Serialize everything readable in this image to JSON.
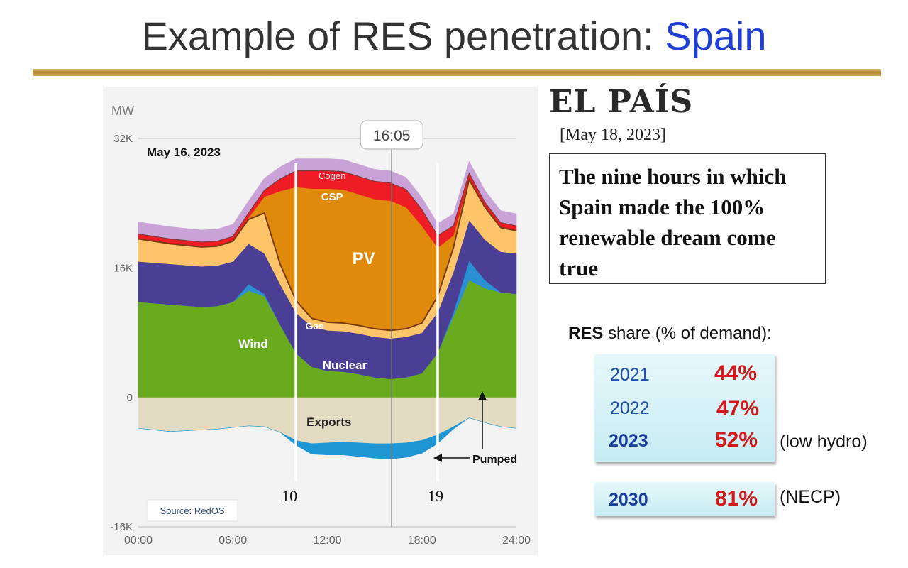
{
  "slide": {
    "title_prefix": "Example of RES penetration: ",
    "title_accent": "Spain"
  },
  "article": {
    "masthead": "EL PAÍS",
    "date": "[May 18, 2023]",
    "headline": "The nine hours in which Spain made the 100% renewable dream come true"
  },
  "res_share": {
    "heading_bold": "RES",
    "heading_rest": " share (% of demand):",
    "rows": [
      {
        "year": "2021",
        "value": "44%",
        "note": ""
      },
      {
        "year": "2022",
        "value": "47%",
        "note": ""
      },
      {
        "year": "2023",
        "value": "52%",
        "note": "(low hydro)"
      },
      {
        "year": "2030",
        "value": "81%",
        "note": "(NECP)"
      }
    ]
  },
  "colors": {
    "wind": "#6aaa1e",
    "hydro": "#2b8fd3",
    "nuclear": "#4a3f94",
    "gas": "#fdc46a",
    "pv": "#e08a0c",
    "csp": "#ee1c25",
    "cogen": "#c9a3d8",
    "exports": "#e4dcc2",
    "pumped": "#1f97d4"
  },
  "chart_data": {
    "type": "area",
    "date_label": "May 16, 2023",
    "unit_label": "MW",
    "cursor_time": "16:05",
    "y_ticks": [
      "32K",
      "16K",
      "0",
      "-16K"
    ],
    "x_ticks": [
      "00:00",
      "06:00",
      "12:00",
      "18:00",
      "24:00"
    ],
    "ylim": [
      -16000,
      32000
    ],
    "xlim": [
      0,
      24
    ],
    "marker_hours": [
      10,
      19
    ],
    "marker_labels": [
      "10",
      "19"
    ],
    "source": "Source: RedOS",
    "x": [
      0,
      2,
      4,
      5,
      6,
      7,
      8,
      9,
      10,
      11,
      12,
      13,
      14,
      15,
      16,
      17,
      18,
      19,
      20,
      21,
      22,
      23,
      24
    ],
    "series": [
      {
        "name": "Wind",
        "values": [
          11800,
          11500,
          11200,
          11300,
          11800,
          13200,
          12500,
          9000,
          5500,
          3800,
          3300,
          3200,
          2900,
          2500,
          2300,
          2500,
          3000,
          5500,
          10000,
          14500,
          13500,
          13000,
          12800
        ]
      },
      {
        "name": "Hydro",
        "values": [
          0,
          0,
          0,
          0,
          0,
          800,
          300,
          0,
          0,
          0,
          0,
          0,
          0,
          0,
          0,
          0,
          0,
          0,
          500,
          2400,
          1000,
          0,
          0
        ]
      },
      {
        "name": "Nuclear",
        "values": [
          5000,
          5000,
          5000,
          5000,
          5000,
          5000,
          5000,
          5000,
          5000,
          5000,
          5000,
          5000,
          5000,
          5000,
          5000,
          5000,
          5000,
          5000,
          5000,
          5000,
          5000,
          5000,
          5000
        ]
      },
      {
        "name": "Gas",
        "values": [
          2800,
          2500,
          2400,
          2400,
          2500,
          3000,
          5000,
          2500,
          1500,
          1000,
          1000,
          1000,
          1000,
          1000,
          1000,
          1000,
          1200,
          2000,
          3000,
          5000,
          4000,
          3000,
          2800
        ]
      },
      {
        "name": "PV",
        "values": [
          0,
          0,
          0,
          0,
          0,
          200,
          2000,
          9000,
          14000,
          16000,
          16500,
          16500,
          16200,
          16000,
          16000,
          15000,
          12000,
          6000,
          1500,
          0,
          0,
          0,
          0
        ]
      },
      {
        "name": "CSP",
        "values": [
          600,
          600,
          600,
          600,
          600,
          600,
          800,
          1500,
          2000,
          2200,
          2200,
          2200,
          2200,
          2200,
          2200,
          2200,
          2000,
          1500,
          1200,
          800,
          600,
          600,
          600
        ]
      },
      {
        "name": "Cogen",
        "values": [
          1500,
          1500,
          1500,
          1500,
          1500,
          1500,
          1500,
          1500,
          1500,
          1500,
          1500,
          1500,
          1500,
          1500,
          1500,
          1500,
          1500,
          1500,
          1500,
          1500,
          1500,
          1500,
          1500
        ]
      }
    ],
    "negative_series": [
      {
        "name": "Exports",
        "values": [
          -3800,
          -4200,
          -4000,
          -3900,
          -3700,
          -3500,
          -3600,
          -4300,
          -5300,
          -5700,
          -5600,
          -5500,
          -5600,
          -5700,
          -5700,
          -5600,
          -5300,
          -4600,
          -3600,
          -2500,
          -3100,
          -3600,
          -3800
        ]
      },
      {
        "name": "Pumped",
        "values": [
          0,
          0,
          0,
          0,
          0,
          0,
          0,
          0,
          -600,
          -1300,
          -1500,
          -1600,
          -1700,
          -1800,
          -1900,
          -1800,
          -1600,
          -1100,
          -300,
          0,
          0,
          0,
          0
        ]
      }
    ]
  },
  "chart_labels": {
    "wind": "Wind",
    "nuclear": "Nuclear",
    "gas": "Gas",
    "pv": "PV",
    "csp": "CSP",
    "cogen": "Cogen",
    "exports": "Exports",
    "pumped": "Pumped"
  }
}
